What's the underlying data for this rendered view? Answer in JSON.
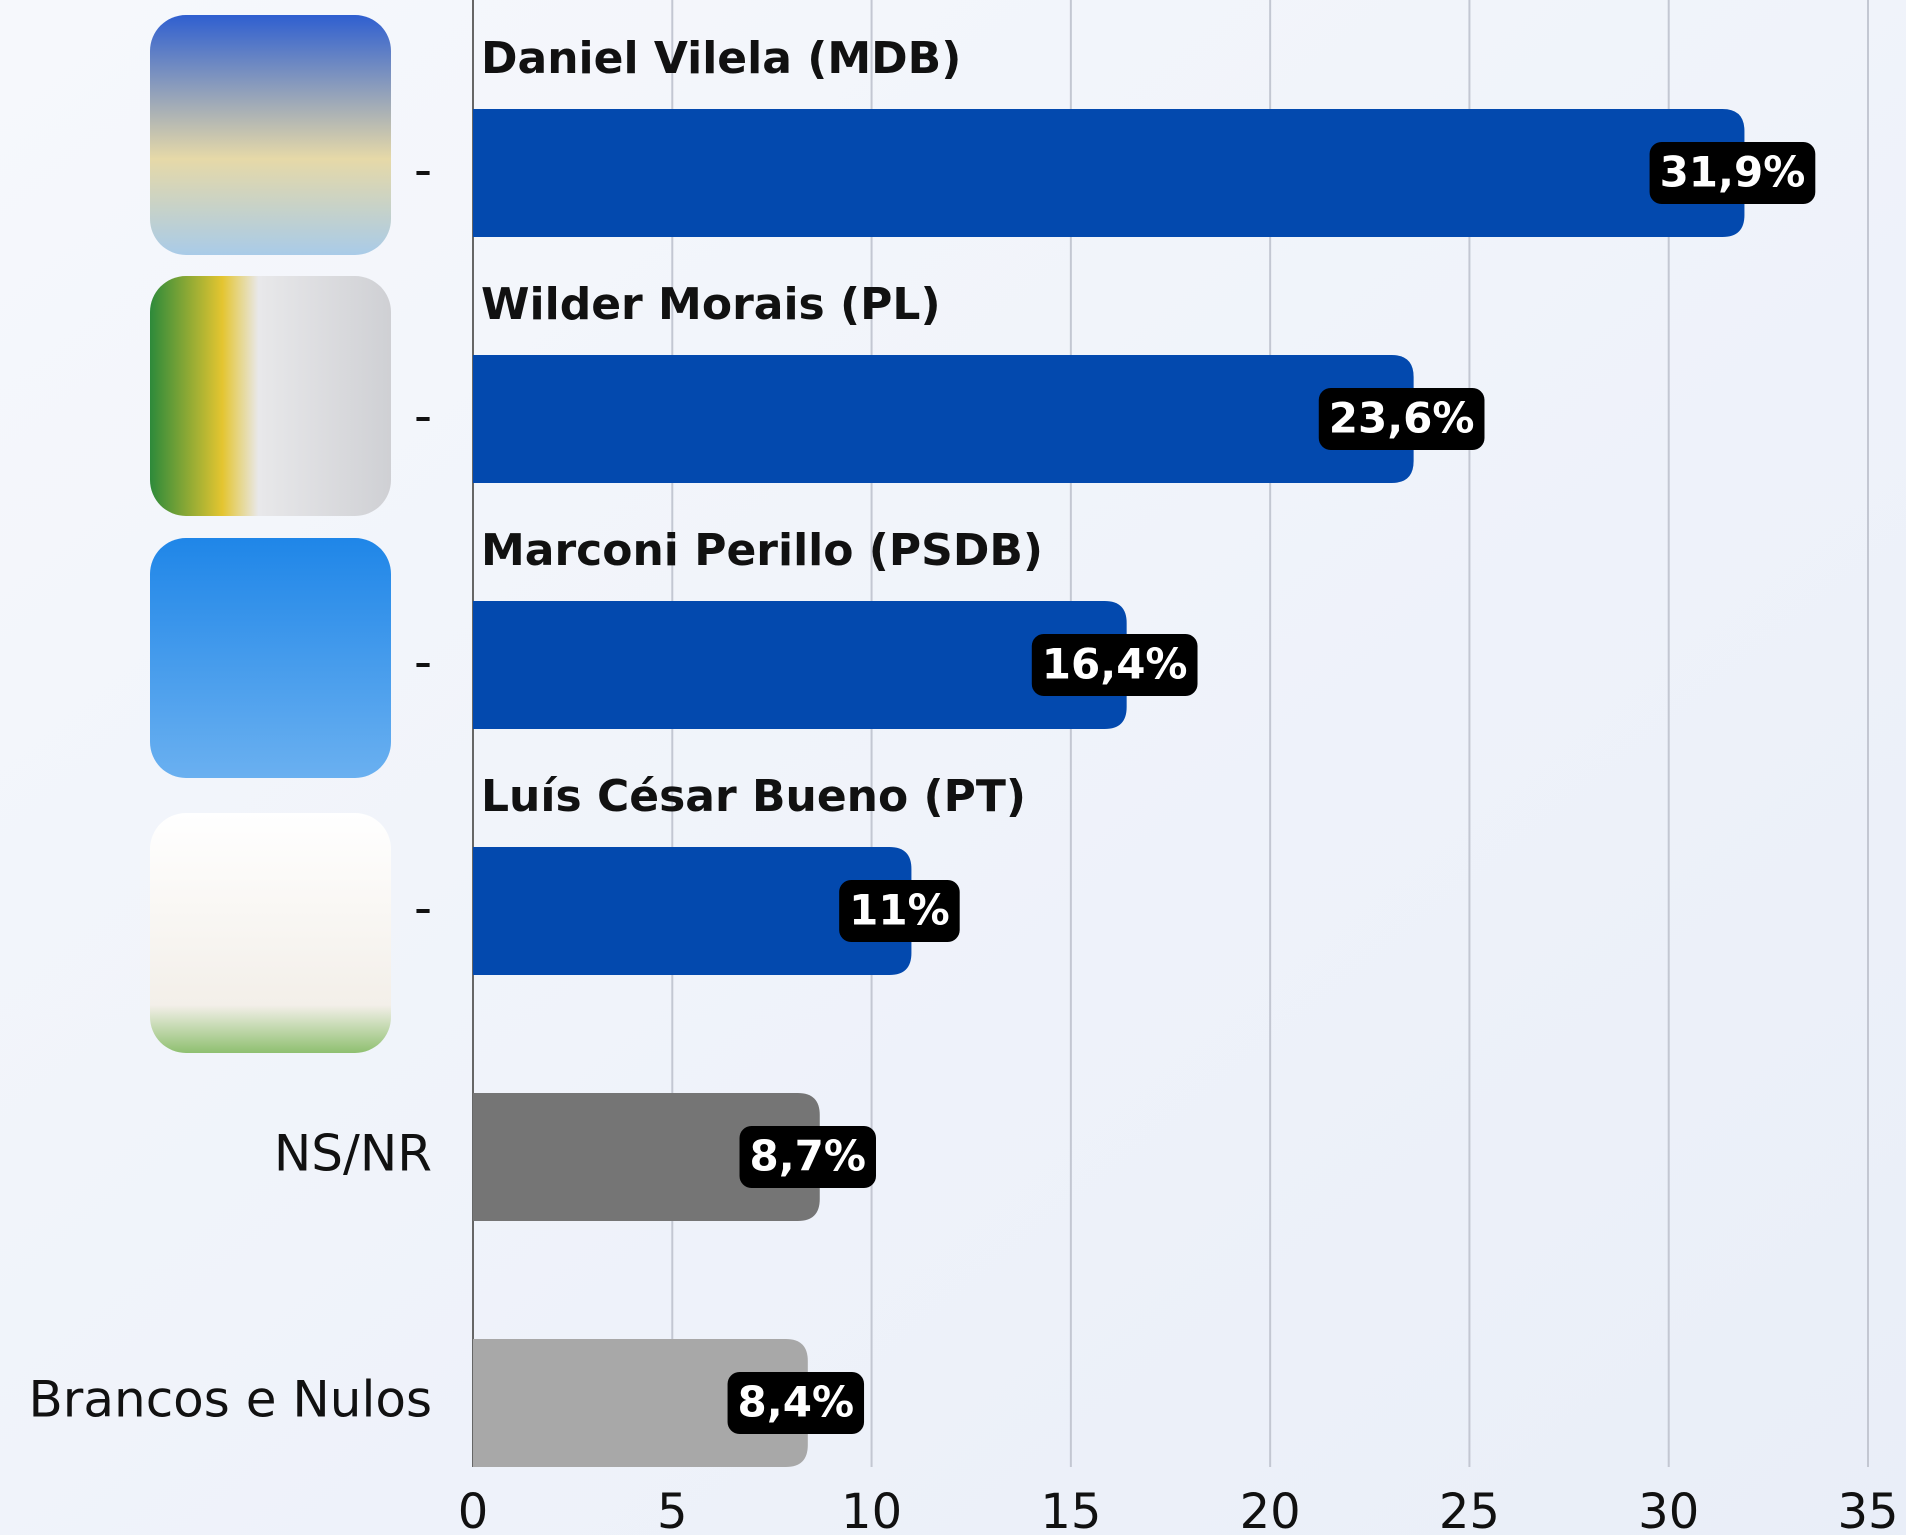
{
  "chart_data": {
    "type": "barh",
    "categories": [
      "-",
      "-",
      "-",
      "-",
      "NS/NR",
      "Brancos e Nulos"
    ],
    "bar_titles": [
      "Daniel Vilela (MDB)",
      "Wilder Morais (PL)",
      "Marconi Perillo (PSDB)",
      "Luís César Bueno (PT)",
      null,
      null
    ],
    "values": [
      31.9,
      23.6,
      16.4,
      11,
      8.7,
      8.4
    ],
    "value_labels": [
      "31,9%",
      "23,6%",
      "16,4%",
      "11%",
      "8,7%",
      "8,4%"
    ],
    "colors": [
      "#0349ae",
      "#0349ae",
      "#0349ae",
      "#0349ae",
      "#757575",
      "#a8a8a8"
    ],
    "xlim": [
      0,
      35
    ],
    "xticks": [
      0,
      5,
      10,
      15,
      20,
      25,
      30,
      35
    ],
    "grid": true
  }
}
